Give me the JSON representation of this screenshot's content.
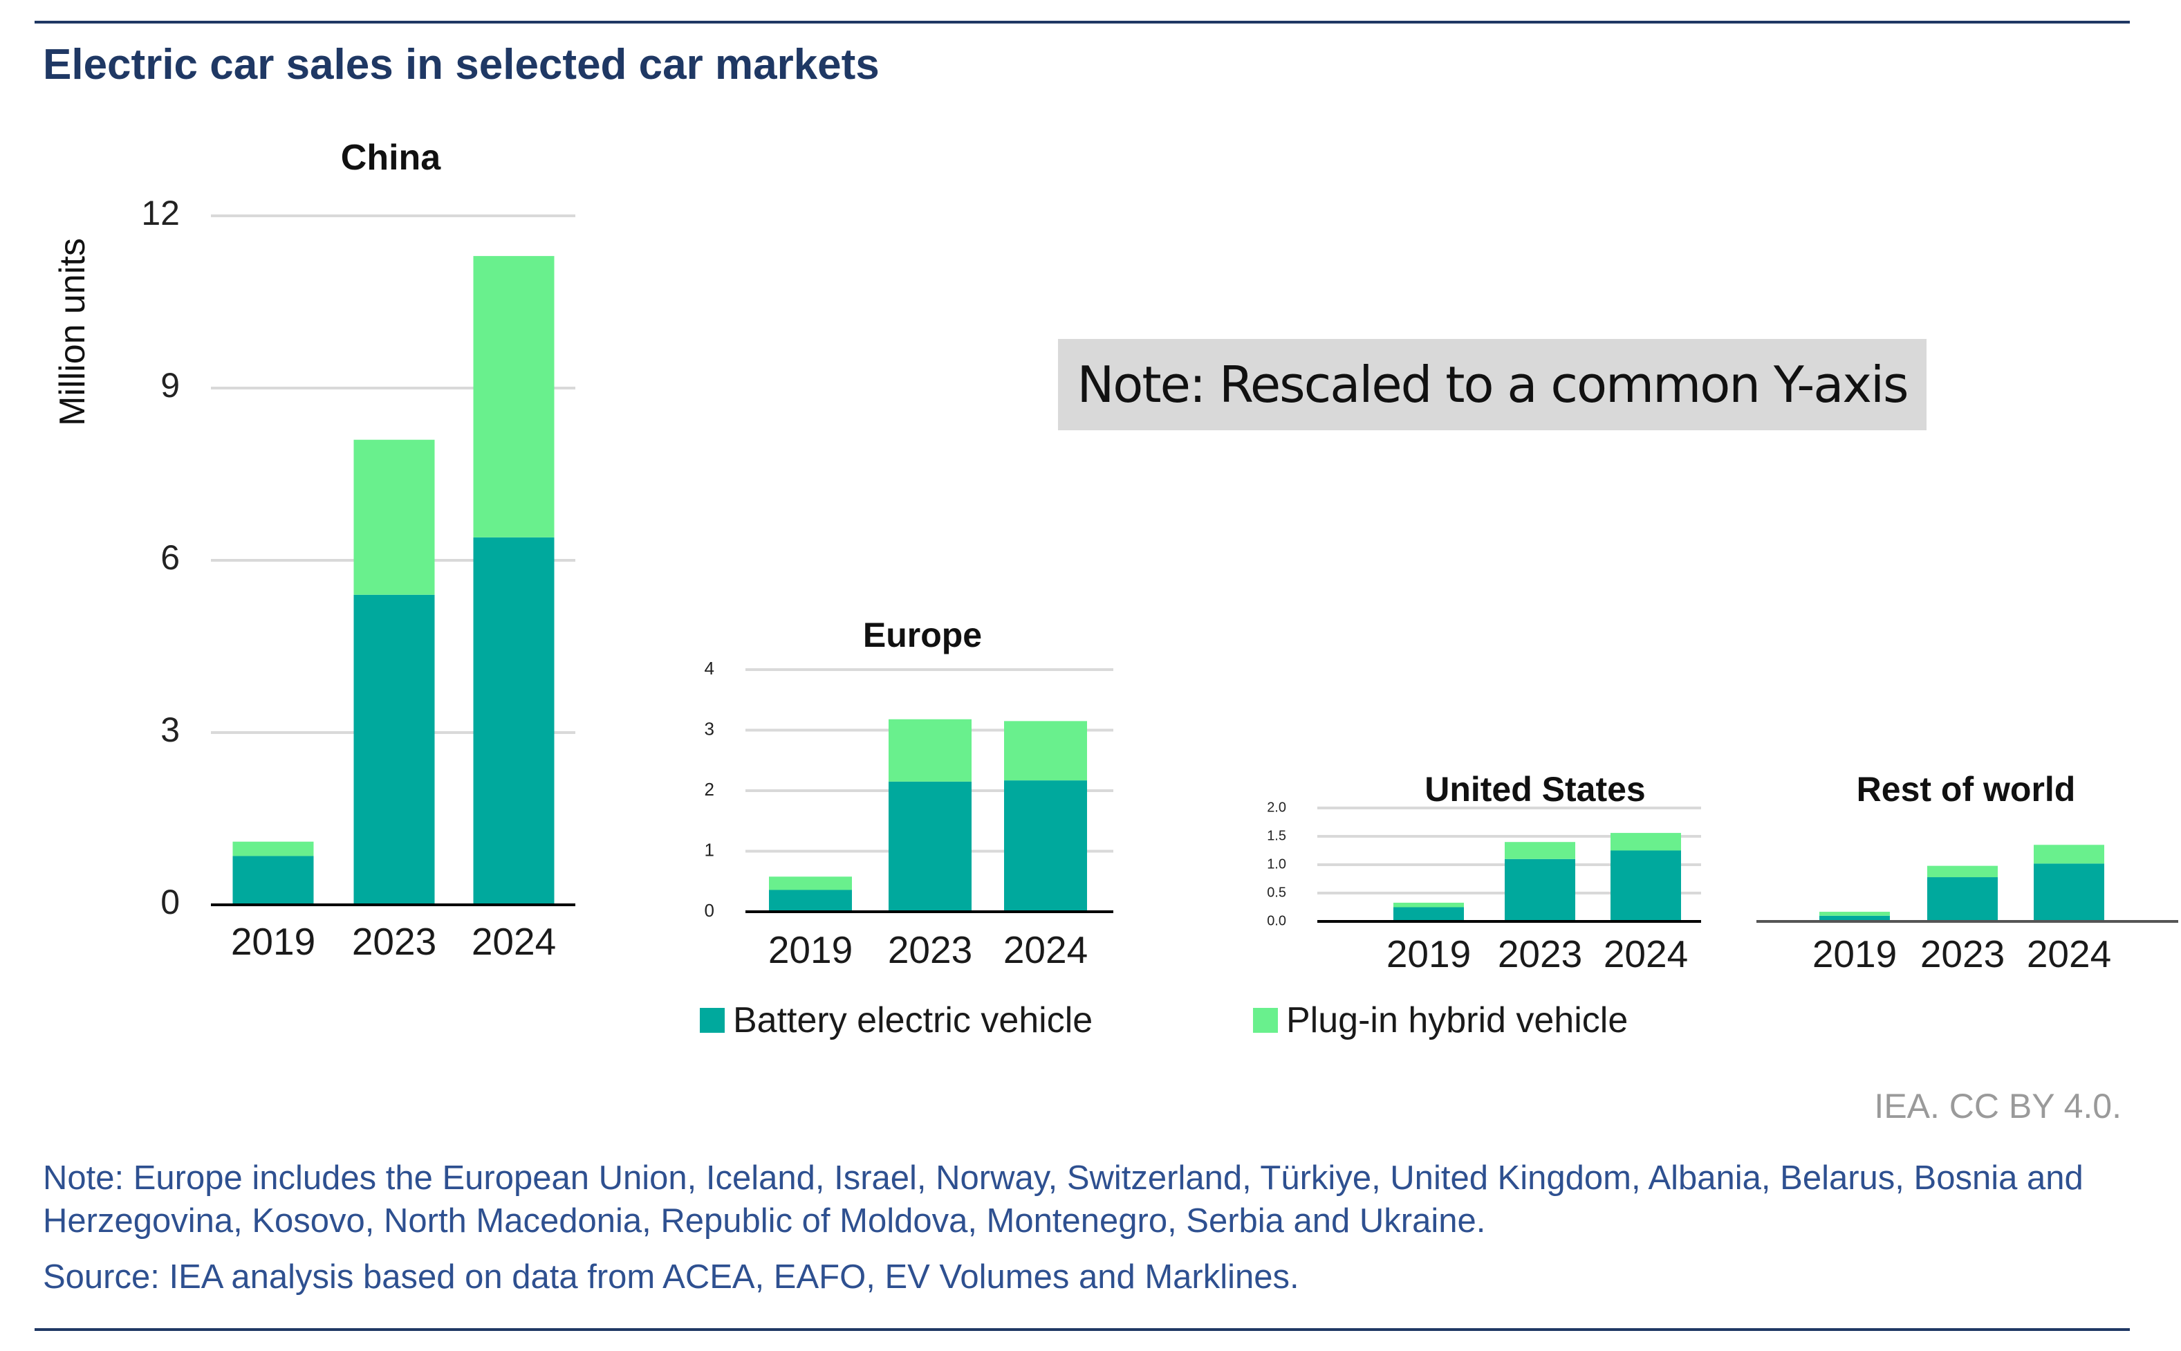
{
  "title": "Electric car sales in selected car markets",
  "rescale_note": "Note: Rescaled to a common Y-axis",
  "credit": "IEA. CC BY 4.0.",
  "notes": {
    "note": "Note: Europe includes the European Union, Iceland, Israel, Norway, Switzerland, Türkiye, United Kingdom, Albania, Belarus, Bosnia and Herzegovina, Kosovo, North Macedonia, Republic of Moldova, Montenegro, Serbia and Ukraine.",
    "source": "Source: IEA analysis based on data from ACEA, EAFO, EV Volumes and Marklines."
  },
  "legend": {
    "bev": "Battery electric vehicle",
    "phev": "Plug-in hybrid vehicle"
  },
  "colors": {
    "bev": "#00a99d",
    "phev": "#69f08d",
    "rule": "#1f3864",
    "grid": "#d9d9d9"
  },
  "chart_data": [
    {
      "type": "bar",
      "stacked": true,
      "title": "China",
      "ylabel": "Million units",
      "categories": [
        "2019",
        "2023",
        "2024"
      ],
      "ylim": [
        0,
        12
      ],
      "yticks": [
        0,
        3,
        6,
        9,
        12
      ],
      "series": [
        {
          "name": "Battery electric vehicle",
          "values": [
            0.85,
            5.4,
            6.4
          ]
        },
        {
          "name": "Plug-in hybrid vehicle",
          "values": [
            0.25,
            2.7,
            4.9
          ]
        }
      ]
    },
    {
      "type": "bar",
      "stacked": true,
      "title": "Europe",
      "ylabel": "",
      "categories": [
        "2019",
        "2023",
        "2024"
      ],
      "ylim": [
        0,
        4
      ],
      "yticks": [
        0,
        1,
        2,
        3,
        4
      ],
      "series": [
        {
          "name": "Battery electric vehicle",
          "values": [
            0.36,
            2.15,
            2.17
          ]
        },
        {
          "name": "Plug-in hybrid vehicle",
          "values": [
            0.22,
            1.03,
            0.98
          ]
        }
      ]
    },
    {
      "type": "bar",
      "stacked": true,
      "title": "United States",
      "ylabel": "",
      "categories": [
        "2019",
        "2023",
        "2024"
      ],
      "ylim": [
        0,
        2
      ],
      "yticks": [
        "0.0",
        "0.5",
        "1.0",
        "1.5",
        "2.0"
      ],
      "series": [
        {
          "name": "Battery electric vehicle",
          "values": [
            0.25,
            1.1,
            1.25
          ]
        },
        {
          "name": "Plug-in hybrid vehicle",
          "values": [
            0.08,
            0.3,
            0.31
          ]
        }
      ]
    },
    {
      "type": "bar",
      "stacked": true,
      "title": "Rest of world",
      "ylabel": "",
      "categories": [
        "2019",
        "2023",
        "2024"
      ],
      "ylim": [
        0,
        2
      ],
      "yticks": [],
      "series": [
        {
          "name": "Battery electric vehicle",
          "values": [
            0.1,
            0.78,
            1.02
          ]
        },
        {
          "name": "Plug-in hybrid vehicle",
          "values": [
            0.07,
            0.2,
            0.33
          ]
        }
      ]
    }
  ]
}
